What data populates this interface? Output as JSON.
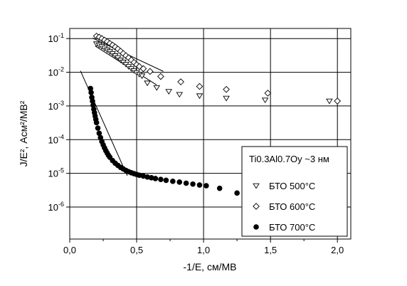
{
  "chart_data": {
    "type": "scatter",
    "xlabel": "-1/E, см/МВ",
    "ylabel": "J/E², Асм²/МВ²",
    "x_ticks": [
      "0,0",
      "0,5",
      "1,0",
      "1,5",
      "2,0"
    ],
    "x_tick_values": [
      0,
      0.5,
      1.0,
      1.5,
      2.0
    ],
    "y_tick_exponents": [
      -6,
      -5,
      -4,
      -3,
      -2,
      -1
    ],
    "xlim": [
      0,
      2.1
    ],
    "ylim_log10": [
      -6.95,
      -0.7
    ],
    "y_scale": "log",
    "grid": true,
    "legend_title": "Ti0.3Al0.7Oy ~3 нм",
    "legend_placement": "right",
    "series": [
      {
        "name": "БТО 500°C",
        "marker": "triangle-down",
        "points": [
          [
            0.2,
            0.07
          ],
          [
            0.22,
            0.064
          ],
          [
            0.24,
            0.058
          ],
          [
            0.26,
            0.052
          ],
          [
            0.28,
            0.046
          ],
          [
            0.3,
            0.041
          ],
          [
            0.32,
            0.036
          ],
          [
            0.34,
            0.031
          ],
          [
            0.36,
            0.027
          ],
          [
            0.38,
            0.023
          ],
          [
            0.4,
            0.02
          ],
          [
            0.42,
            0.0172
          ],
          [
            0.44,
            0.0148
          ],
          [
            0.46,
            0.0128
          ],
          [
            0.48,
            0.0112
          ],
          [
            0.5,
            0.0098
          ],
          [
            0.52,
            0.0087
          ],
          [
            0.54,
            0.0078
          ],
          [
            0.58,
            0.0048
          ],
          [
            0.65,
            0.0035
          ],
          [
            0.74,
            0.0027
          ],
          [
            0.82,
            0.0022
          ],
          [
            0.97,
            0.002
          ],
          [
            1.17,
            0.0017
          ],
          [
            1.46,
            0.0015
          ],
          [
            1.94,
            0.0014
          ]
        ]
      },
      {
        "name": "БТО 600°C",
        "marker": "diamond",
        "points": [
          [
            0.2,
            0.118
          ],
          [
            0.22,
            0.11
          ],
          [
            0.24,
            0.1
          ],
          [
            0.26,
            0.09
          ],
          [
            0.28,
            0.081
          ],
          [
            0.3,
            0.072
          ],
          [
            0.32,
            0.064
          ],
          [
            0.34,
            0.056
          ],
          [
            0.36,
            0.049
          ],
          [
            0.38,
            0.042
          ],
          [
            0.4,
            0.036
          ],
          [
            0.42,
            0.031
          ],
          [
            0.44,
            0.027
          ],
          [
            0.46,
            0.023
          ],
          [
            0.48,
            0.0196
          ],
          [
            0.5,
            0.0168
          ],
          [
            0.52,
            0.0148
          ],
          [
            0.55,
            0.0128
          ],
          [
            0.6,
            0.0106
          ],
          [
            0.68,
            0.0075
          ],
          [
            0.83,
            0.0052
          ],
          [
            0.97,
            0.0038
          ],
          [
            1.17,
            0.0031
          ],
          [
            1.48,
            0.0024
          ],
          [
            2.0,
            0.0014
          ]
        ]
      },
      {
        "name": "БТО 700°C",
        "marker": "filled-circle",
        "points": [
          [
            0.155,
            0.0033
          ],
          [
            0.16,
            0.0025
          ],
          [
            0.165,
            0.0018
          ],
          [
            0.17,
            0.0014
          ],
          [
            0.175,
            0.00105
          ],
          [
            0.18,
            0.0008
          ],
          [
            0.185,
            0.00063
          ],
          [
            0.19,
            0.0005
          ],
          [
            0.195,
            0.0004
          ],
          [
            0.2,
            0.00032
          ],
          [
            0.21,
            0.00022
          ],
          [
            0.22,
            0.000155
          ],
          [
            0.23,
            0.000115
          ],
          [
            0.24,
            8.8e-05
          ],
          [
            0.25,
            7e-05
          ],
          [
            0.26,
            5.7e-05
          ],
          [
            0.27,
            4.7e-05
          ],
          [
            0.28,
            4e-05
          ],
          [
            0.29,
            3.4e-05
          ],
          [
            0.3,
            3e-05
          ],
          [
            0.32,
            2.4e-05
          ],
          [
            0.34,
            2e-05
          ],
          [
            0.36,
            1.72e-05
          ],
          [
            0.38,
            1.5e-05
          ],
          [
            0.4,
            1.35e-05
          ],
          [
            0.42,
            1.22e-05
          ],
          [
            0.44,
            1.12e-05
          ],
          [
            0.46,
            1.04e-05
          ],
          [
            0.48,
            9.8e-06
          ],
          [
            0.5,
            9.3e-06
          ],
          [
            0.52,
            8.8e-06
          ],
          [
            0.55,
            8.3e-06
          ],
          [
            0.58,
            7.8e-06
          ],
          [
            0.61,
            7.4e-06
          ],
          [
            0.64,
            7e-06
          ],
          [
            0.68,
            6.6e-06
          ],
          [
            0.72,
            6.2e-06
          ],
          [
            0.77,
            5.8e-06
          ],
          [
            0.82,
            5.5e-06
          ],
          [
            0.87,
            5.1e-06
          ],
          [
            0.92,
            4.8e-06
          ],
          [
            0.97,
            4.5e-06
          ],
          [
            1.02,
            4.3e-06
          ],
          [
            1.12,
            3.6e-06
          ],
          [
            1.25,
            2.6e-06
          ]
        ]
      }
    ],
    "fit_lines": [
      {
        "x": [
          0.17,
          0.7
        ],
        "y": [
          0.103,
          0.0106
        ]
      },
      {
        "x": [
          0.19,
          0.65
        ],
        "y": [
          0.06,
          0.0042
        ]
      },
      {
        "x": [
          0.08,
          0.43
        ],
        "y": [
          0.011,
          8.5e-06
        ]
      }
    ]
  }
}
